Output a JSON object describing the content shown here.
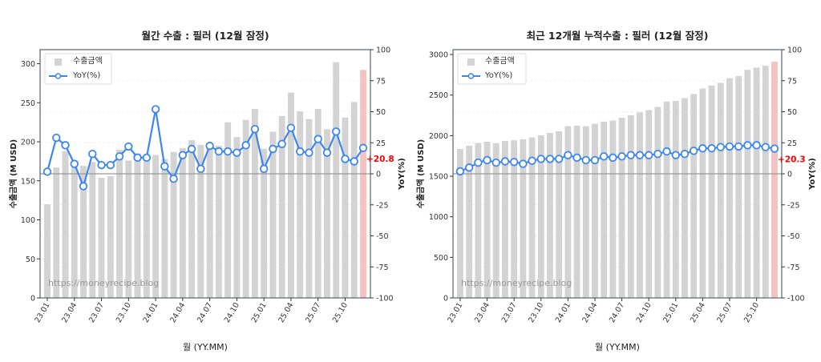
{
  "chart_data": [
    {
      "type": "bar+line",
      "title": "월간 수출 : 필러 (12월 잠정)",
      "xlabel": "월 (YY.MM)",
      "ylabel": "수출금액 (M USD)",
      "y2label": "YoY(%)",
      "ylim": [
        0,
        318
      ],
      "y2lim": [
        -100,
        100
      ],
      "yticks": [
        0,
        50,
        100,
        150,
        200,
        250,
        300
      ],
      "y2ticks": [
        -100,
        -75,
        -50,
        -25,
        0,
        25,
        50,
        75,
        100
      ],
      "grid": "horizontal dashed at right-axis ticks",
      "legend": "top-left",
      "legend_entries": [
        "수출금액",
        "YoY(%)"
      ],
      "watermark": "https://moneyrecipe.blog",
      "annotation": "+20.8",
      "categories": [
        "23.01",
        "23.02",
        "23.03",
        "23.04",
        "23.05",
        "23.06",
        "23.07",
        "23.08",
        "23.09",
        "23.10",
        "23.11",
        "23.12",
        "24.01",
        "24.02",
        "24.03",
        "24.04",
        "24.05",
        "24.06",
        "24.07",
        "24.08",
        "24.09",
        "24.10",
        "24.11",
        "24.12",
        "25.01",
        "25.02",
        "25.03",
        "25.04",
        "25.05",
        "25.06",
        "25.07",
        "25.08",
        "25.09",
        "25.10",
        "25.11",
        "25.12"
      ],
      "tick_labels": [
        "23.01",
        "23.04",
        "23.07",
        "23.10",
        "24.01",
        "24.04",
        "24.07",
        "24.10",
        "25.01",
        "25.04",
        "25.07",
        "25.10"
      ],
      "series": [
        {
          "name": "수출금액",
          "type": "bar",
          "values": [
            120,
            167,
            188,
            172,
            169,
            174,
            154,
            156,
            190,
            176,
            185,
            182,
            183,
            178,
            187,
            192,
            202,
            196,
            198,
            195,
            225,
            206,
            228,
            242,
            191,
            213,
            233,
            263,
            239,
            229,
            242,
            216,
            302,
            231,
            251,
            292
          ]
        },
        {
          "name": "YoY(%)",
          "type": "line",
          "values": [
            1.7,
            29,
            23,
            8,
            -10,
            16,
            7,
            7,
            14,
            22,
            13,
            13,
            52,
            6,
            -4,
            15,
            20,
            4,
            22.5,
            18,
            18,
            17,
            23,
            36,
            4,
            20,
            24,
            37,
            18,
            17,
            28,
            17,
            34,
            12,
            10,
            20.8
          ]
        }
      ],
      "colors": {
        "bar": "#d3d3d3",
        "last_bar": "#f4c2c2",
        "line": "#3d86f2",
        "annotation": "#ff0000",
        "zero_line": "#999999"
      }
    },
    {
      "type": "bar+line",
      "title": "최근 12개월 누적수출 : 필러 (12월 잠정)",
      "xlabel": "월 (YY.MM)",
      "ylabel": "수출금액 (M USD)",
      "y2label": "YoY(%)",
      "ylim": [
        0,
        3060
      ],
      "y2lim": [
        -100,
        100
      ],
      "yticks": [
        0,
        500,
        1000,
        1500,
        2000,
        2500,
        3000
      ],
      "y2ticks": [
        -100,
        -75,
        -50,
        -25,
        0,
        25,
        50,
        75,
        100
      ],
      "grid": "horizontal dashed at right-axis ticks",
      "legend": "top-left",
      "legend_entries": [
        "수출금액",
        "YoY(%)"
      ],
      "watermark": "https://moneyrecipe.blog",
      "annotation": "+20.3",
      "categories": [
        "23.01",
        "23.02",
        "23.03",
        "23.04",
        "23.05",
        "23.06",
        "23.07",
        "23.08",
        "23.09",
        "23.10",
        "23.11",
        "23.12",
        "24.01",
        "24.02",
        "24.03",
        "24.04",
        "24.05",
        "24.06",
        "24.07",
        "24.08",
        "24.09",
        "24.10",
        "24.11",
        "24.12",
        "25.01",
        "25.02",
        "25.03",
        "25.04",
        "25.05",
        "25.06",
        "25.07",
        "25.08",
        "25.09",
        "25.10",
        "25.11",
        "25.12"
      ],
      "tick_labels": [
        "23.01",
        "23.04",
        "23.07",
        "23.10",
        "24.01",
        "24.04",
        "24.07",
        "24.10",
        "25.01",
        "25.04",
        "25.07",
        "25.10"
      ],
      "series": [
        {
          "name": "수출금액",
          "type": "bar",
          "values": [
            1836,
            1876,
            1909,
            1925,
            1906,
            1935,
            1942,
            1955,
            1978,
            2004,
            2034,
            2054,
            2117,
            2123,
            2117,
            2146,
            2173,
            2186,
            2222,
            2252,
            2288,
            2315,
            2354,
            2420,
            2427,
            2463,
            2512,
            2582,
            2618,
            2651,
            2707,
            2733,
            2812,
            2839,
            2862,
            2911
          ]
        },
        {
          "name": "YoY(%)",
          "type": "line",
          "values": [
            2,
            5,
            9,
            11,
            9,
            10,
            9.5,
            8,
            10.5,
            12,
            12,
            12,
            15,
            13,
            11,
            11,
            14,
            13,
            14,
            15,
            15,
            15,
            16,
            18,
            15,
            16,
            18.5,
            20.5,
            20.5,
            21.5,
            22,
            22,
            23,
            23,
            21.5,
            20.3
          ]
        }
      ],
      "colors": {
        "bar": "#d3d3d3",
        "last_bar": "#f4c2c2",
        "line": "#3d86f2",
        "annotation": "#ff0000",
        "zero_line": "#999999"
      }
    }
  ]
}
